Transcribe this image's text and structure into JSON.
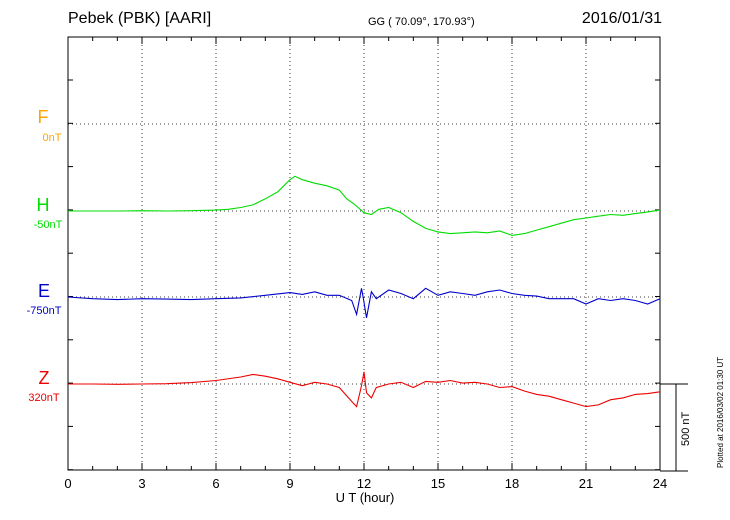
{
  "header": {
    "station": "Pebek (PBK)  [AARI]",
    "coords": "GG ( 70.09°, 170.93°)",
    "date": "2016/01/31"
  },
  "components": [
    {
      "name": "F",
      "offset": "0nT",
      "color": "#ffa500"
    },
    {
      "name": "H",
      "offset": "-50nT",
      "color": "#00dd00"
    },
    {
      "name": "E",
      "offset": "-750nT",
      "color": "#0000cc"
    },
    {
      "name": "Z",
      "offset": "320nT",
      "color": "#ee0000"
    }
  ],
  "scale_label": "500 nT",
  "plotted_label": "Plotted at 2016/03/02 01:30 UT",
  "chart_data": {
    "type": "line",
    "xlabel": "U T (hour)",
    "xlim": [
      0,
      24
    ],
    "xticks": [
      "0",
      "3",
      "6",
      "9",
      "12",
      "15",
      "18",
      "21",
      "24"
    ],
    "baseline_spacing_nT": 500,
    "grid": true,
    "series": [
      {
        "name": "F",
        "color": "#ffa500",
        "baseline_nT": 0,
        "x": [],
        "y": []
      },
      {
        "name": "H",
        "color": "#00dd00",
        "baseline_nT": -50,
        "x": [
          0,
          1,
          2,
          3,
          4,
          5,
          6,
          6.5,
          7,
          7.5,
          8,
          8.5,
          9,
          9.2,
          9.5,
          10,
          10.5,
          11,
          11.3,
          11.6,
          12,
          12.3,
          12.6,
          13,
          13.5,
          14,
          14.5,
          15,
          15.5,
          16,
          16.5,
          17,
          17.5,
          18,
          18.5,
          19,
          19.5,
          20,
          20.5,
          21,
          21.5,
          22,
          22.5,
          23,
          23.5,
          24
        ],
        "y": [
          -50,
          -50,
          -50,
          -48,
          -50,
          -48,
          -45,
          -40,
          -30,
          -15,
          20,
          60,
          130,
          150,
          130,
          110,
          95,
          70,
          20,
          -10,
          -60,
          -70,
          -40,
          -30,
          -60,
          -110,
          -150,
          -170,
          -180,
          -175,
          -170,
          -175,
          -165,
          -190,
          -180,
          -160,
          -140,
          -120,
          -100,
          -90,
          -80,
          -70,
          -75,
          -65,
          -55,
          -45
        ]
      },
      {
        "name": "E",
        "color": "#0000cc",
        "baseline_nT": -750,
        "x": [
          0,
          1,
          2,
          3,
          4,
          5,
          6,
          7,
          8,
          9,
          9.5,
          10,
          10.5,
          11,
          11.5,
          11.7,
          11.9,
          12,
          12.1,
          12.3,
          12.5,
          13,
          13.5,
          14,
          14.5,
          15,
          15.5,
          16,
          16.5,
          17,
          17.5,
          18,
          18.5,
          19,
          19.5,
          20,
          20.5,
          21,
          21.5,
          22,
          22.5,
          23,
          23.5,
          24
        ],
        "y": [
          -750,
          -760,
          -765,
          -760,
          -762,
          -765,
          -760,
          -755,
          -740,
          -725,
          -735,
          -720,
          -740,
          -740,
          -770,
          -850,
          -700,
          -780,
          -870,
          -720,
          -760,
          -710,
          -730,
          -760,
          -700,
          -740,
          -720,
          -730,
          -740,
          -720,
          -710,
          -730,
          -740,
          -745,
          -760,
          -760,
          -760,
          -790,
          -760,
          -770,
          -760,
          -770,
          -790,
          -760
        ]
      },
      {
        "name": "Z",
        "color": "#ee0000",
        "baseline_nT": 320,
        "x": [
          0,
          1,
          2,
          3,
          4,
          5,
          6,
          7,
          7.5,
          8,
          8.5,
          9,
          9.5,
          10,
          10.5,
          11,
          11.5,
          11.7,
          11.9,
          12,
          12.1,
          12.3,
          12.5,
          13,
          13.5,
          14,
          14.5,
          15,
          15.5,
          16,
          16.5,
          17,
          17.5,
          18,
          18.5,
          19,
          19.5,
          20,
          20.5,
          21,
          21.5,
          22,
          22.5,
          23,
          23.5,
          24
        ],
        "y": [
          320,
          320,
          318,
          320,
          322,
          328,
          340,
          360,
          375,
          365,
          350,
          330,
          310,
          330,
          320,
          300,
          220,
          190,
          310,
          390,
          270,
          240,
          300,
          320,
          330,
          300,
          335,
          330,
          340,
          325,
          330,
          320,
          300,
          305,
          280,
          260,
          250,
          230,
          210,
          190,
          200,
          230,
          240,
          260,
          265,
          275
        ]
      }
    ]
  }
}
